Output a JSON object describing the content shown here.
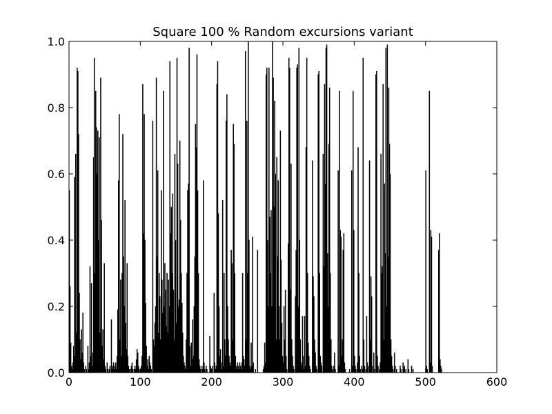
{
  "chart_data": {
    "type": "bar",
    "title": "Square 100 % Random excursions variant",
    "color": "#000000",
    "x": [
      0,
      1,
      2,
      3,
      4,
      5,
      6,
      7,
      8,
      9,
      10,
      11,
      12,
      13,
      14,
      15,
      16,
      17,
      18,
      19,
      20,
      21,
      22,
      23,
      24,
      25,
      26,
      27,
      28,
      29,
      30,
      31,
      32,
      33,
      34,
      35,
      36,
      37,
      38,
      39,
      40,
      41,
      42,
      43,
      44,
      45,
      46,
      47,
      48,
      49,
      50,
      51,
      52,
      53,
      54,
      55,
      56,
      57,
      58,
      59,
      60,
      61,
      62,
      63,
      64,
      65,
      66,
      67,
      68,
      69,
      70,
      71,
      72,
      73,
      74,
      75,
      76,
      77,
      78,
      79,
      80,
      81,
      82,
      83,
      84,
      85,
      86,
      87,
      88,
      89,
      90,
      91,
      92,
      93,
      94,
      95,
      96,
      97,
      98,
      99,
      100,
      101,
      102,
      103,
      104,
      105,
      106,
      107,
      108,
      109,
      110,
      111,
      112,
      113,
      114,
      115,
      116,
      117,
      118,
      119,
      120,
      121,
      122,
      123,
      124,
      125,
      126,
      127,
      128,
      129,
      130,
      131,
      132,
      133,
      134,
      135,
      136,
      137,
      138,
      139,
      140,
      141,
      142,
      143,
      144,
      145,
      146,
      147,
      148,
      149,
      150,
      151,
      152,
      153,
      154,
      155,
      156,
      157,
      158,
      159,
      160,
      161,
      162,
      163,
      164,
      165,
      166,
      167,
      168,
      169,
      170,
      171,
      172,
      173,
      174,
      175,
      176,
      177,
      178,
      179,
      180,
      181,
      182,
      183,
      184,
      185,
      186,
      187,
      188,
      189,
      190,
      191,
      192,
      193,
      194,
      195,
      196,
      197,
      198,
      199,
      200,
      201,
      202,
      203,
      204,
      205,
      206,
      207,
      208,
      209,
      210,
      211,
      212,
      213,
      214,
      215,
      216,
      217,
      218,
      219,
      220,
      221,
      222,
      223,
      224,
      225,
      226,
      227,
      228,
      229,
      230,
      231,
      232,
      233,
      234,
      235,
      236,
      237,
      238,
      239,
      240,
      241,
      242,
      243,
      244,
      245,
      246,
      247,
      248,
      249,
      250,
      251,
      252,
      253,
      254,
      255,
      256,
      257,
      258,
      259,
      260,
      261,
      262,
      263,
      264,
      265,
      266,
      267,
      268,
      269,
      270,
      271,
      272,
      273,
      274,
      275,
      276,
      277,
      278,
      279,
      280,
      281,
      282,
      283,
      284,
      285,
      286,
      287,
      288,
      289,
      290,
      291,
      292,
      293,
      294,
      295,
      296,
      297,
      298,
      299,
      300,
      301,
      302,
      303,
      304,
      305,
      306,
      307,
      308,
      309,
      310,
      311,
      312,
      313,
      314,
      315,
      316,
      317,
      318,
      319,
      320,
      321,
      322,
      323,
      324,
      325,
      326,
      327,
      328,
      329,
      330,
      331,
      332,
      333,
      334,
      335,
      336,
      337,
      338,
      339,
      340,
      341,
      342,
      343,
      344,
      345,
      346,
      347,
      348,
      349,
      350,
      351,
      352,
      353,
      354,
      355,
      356,
      357,
      358,
      359,
      360,
      361,
      362,
      363,
      364,
      365,
      366,
      367,
      368,
      369,
      370,
      371,
      372,
      373,
      374,
      375,
      376,
      377,
      378,
      379,
      380,
      381,
      382,
      383,
      384,
      385,
      386,
      387,
      388,
      389,
      390,
      391,
      392,
      393,
      394,
      395,
      396,
      397,
      398,
      399,
      400,
      401,
      402,
      403,
      404,
      405,
      406,
      407,
      408,
      409,
      410,
      411,
      412,
      413,
      414,
      415,
      416,
      417,
      418,
      419,
      420,
      421,
      422,
      423,
      424,
      425,
      426,
      427,
      428,
      429,
      430,
      431,
      432,
      433,
      434,
      435,
      436,
      437,
      438,
      439,
      440,
      441,
      442,
      443,
      444,
      445,
      446,
      447,
      448,
      449,
      450,
      451,
      452,
      453,
      454,
      455,
      456,
      457,
      458,
      459,
      460,
      461,
      462,
      463,
      464,
      465,
      466,
      467,
      468,
      469,
      470,
      471,
      472,
      473,
      474,
      475,
      476,
      477,
      478,
      479,
      480,
      481,
      482,
      483,
      484,
      485,
      486,
      487,
      488,
      489,
      490,
      491,
      492,
      493,
      494,
      495,
      496,
      497,
      498,
      499,
      500,
      501,
      502,
      503,
      504,
      505,
      506,
      507,
      508,
      509,
      510,
      511,
      512,
      513,
      514,
      515,
      516,
      517,
      518,
      519,
      520,
      521,
      522,
      523,
      524,
      525,
      526,
      527,
      528,
      529,
      530,
      531,
      532,
      533,
      534,
      535,
      536,
      537,
      538,
      539
    ],
    "values": [
      0.55,
      0.26,
      0.09,
      0.02,
      0.01,
      0.03,
      0.08,
      0.59,
      0.05,
      0.66,
      0.12,
      0.92,
      0.91,
      0.72,
      0.24,
      0.1,
      0.04,
      0.13,
      0.06,
      0.18,
      0.03,
      0.01,
      0.0,
      0.02,
      0.01,
      0.0,
      0.08,
      0.01,
      0.03,
      0.32,
      0.05,
      0.27,
      0.02,
      0.06,
      0.65,
      0.95,
      0.3,
      0.85,
      0.74,
      0.6,
      0.73,
      0.4,
      0.71,
      0.12,
      0.89,
      0.46,
      0.08,
      0.13,
      0.04,
      0.33,
      0.02,
      0.01,
      0.0,
      0.03,
      0.01,
      0.0,
      0.01,
      0.02,
      0.0,
      0.16,
      0.01,
      0.02,
      0.03,
      0.01,
      0.02,
      0.03,
      0.01,
      0.05,
      0.19,
      0.58,
      0.78,
      0.1,
      0.28,
      0.05,
      0.3,
      0.72,
      0.35,
      0.2,
      0.52,
      0.15,
      0.07,
      0.33,
      0.05,
      0.02,
      0.01,
      0.0,
      0.01,
      0.02,
      0.03,
      0.01,
      0.0,
      0.01,
      0.02,
      0.01,
      0.04,
      0.07,
      0.06,
      0.02,
      0.01,
      0.0,
      0.01,
      0.02,
      0.05,
      0.87,
      0.42,
      0.78,
      0.4,
      0.21,
      0.08,
      0.02,
      0.04,
      0.01,
      0.05,
      0.03,
      0.02,
      0.01,
      0.0,
      0.76,
      0.1,
      0.08,
      0.15,
      0.2,
      0.89,
      0.35,
      0.61,
      0.12,
      0.3,
      0.23,
      0.1,
      0.55,
      0.28,
      0.18,
      0.85,
      0.2,
      0.33,
      0.25,
      0.14,
      0.3,
      0.12,
      0.28,
      0.2,
      0.94,
      0.42,
      0.5,
      0.3,
      0.54,
      0.25,
      0.1,
      0.66,
      0.4,
      0.15,
      0.95,
      0.63,
      0.2,
      0.22,
      0.7,
      0.46,
      0.3,
      0.21,
      0.12,
      0.05,
      0.03,
      0.02,
      0.01,
      0.1,
      0.3,
      0.55,
      0.57,
      0.98,
      0.08,
      0.02,
      0.09,
      0.04,
      0.16,
      0.05,
      0.2,
      0.35,
      0.75,
      0.68,
      0.96,
      0.55,
      0.3,
      0.04,
      0.02,
      0.01,
      0.0,
      0.02,
      0.01,
      0.58,
      0.03,
      0.01,
      0.0,
      0.02,
      0.01,
      0.0,
      0.0,
      0.0,
      0.11,
      0.02,
      0.01,
      0.0,
      0.02,
      0.0,
      0.24,
      0.03,
      0.01,
      0.02,
      0.87,
      0.94,
      0.48,
      0.2,
      0.05,
      0.07,
      0.03,
      0.01,
      0.52,
      0.02,
      0.3,
      0.1,
      0.05,
      0.76,
      0.84,
      0.2,
      0.1,
      0.05,
      0.03,
      0.02,
      0.37,
      0.33,
      0.1,
      0.75,
      0.69,
      0.3,
      0.05,
      0.02,
      0.01,
      0.03,
      0.02,
      0.01,
      0.03,
      0.02,
      0.01,
      0.03,
      0.3,
      0.05,
      0.04,
      0.02,
      0.97,
      0.1,
      0.76,
      0.3,
      1.0,
      0.4,
      0.02,
      0.01,
      0.09,
      0.02,
      0.41,
      0.03,
      0.0,
      0.0,
      0.01,
      0.0,
      0.0,
      0.37,
      0.0,
      0.0,
      0.0,
      0.0,
      0.0,
      0.0,
      0.0,
      0.01,
      0.02,
      0.09,
      0.03,
      0.9,
      0.92,
      0.4,
      0.2,
      0.92,
      0.47,
      0.3,
      0.49,
      0.2,
      1.0,
      0.89,
      0.5,
      0.82,
      0.6,
      0.1,
      0.65,
      0.35,
      0.58,
      0.2,
      0.1,
      0.73,
      0.34,
      0.15,
      0.05,
      0.03,
      0.2,
      0.1,
      0.25,
      0.05,
      0.01,
      0.0,
      0.39,
      0.95,
      0.92,
      0.25,
      0.63,
      0.1,
      0.05,
      0.02,
      0.01,
      0.0,
      0.23,
      0.37,
      0.92,
      0.93,
      0.2,
      0.98,
      0.4,
      0.1,
      0.03,
      0.02,
      0.17,
      0.05,
      0.01,
      0.17,
      0.02,
      0.68,
      0.95,
      0.3,
      0.09,
      0.05,
      0.02,
      0.01,
      0.0,
      0.0,
      0.64,
      0.29,
      0.23,
      0.1,
      0.06,
      0.02,
      0.01,
      0.0,
      0.9,
      0.91,
      0.3,
      0.05,
      0.03,
      0.02,
      0.0,
      0.66,
      0.32,
      0.87,
      0.57,
      0.98,
      0.99,
      0.36,
      0.2,
      0.69,
      0.86,
      0.3,
      0.1,
      0.02,
      0.01,
      0.0,
      0.02,
      0.06,
      0.01,
      0.0,
      0.0,
      0.0,
      0.61,
      0.02,
      0.85,
      0.43,
      0.41,
      0.05,
      0.1,
      0.37,
      0.42,
      0.03,
      0.01,
      0.0,
      0.0,
      0.0,
      0.0,
      0.0,
      0.01,
      0.0,
      0.0,
      0.61,
      0.02,
      0.85,
      0.43,
      0.05,
      0.02,
      0.01,
      0.0,
      0.03,
      0.68,
      0.3,
      0.05,
      0.01,
      0.0,
      0.02,
      0.01,
      0.95,
      0.1,
      0.02,
      0.0,
      0.01,
      0.17,
      0.03,
      0.0,
      0.02,
      0.64,
      0.1,
      0.29,
      0.23,
      0.02,
      0.0,
      0.06,
      0.01,
      0.0,
      0.9,
      0.91,
      0.05,
      0.02,
      0.0,
      0.01,
      0.03,
      0.66,
      0.3,
      0.32,
      0.87,
      0.1,
      0.57,
      0.36,
      0.98,
      0.2,
      0.99,
      0.35,
      0.86,
      0.69,
      0.6,
      0.1,
      0.05,
      0.02,
      0.01,
      0.0,
      0.06,
      0.02,
      0.0,
      0.01,
      0.0,
      0.0,
      0.0,
      0.0,
      0.02,
      0.01,
      0.0,
      0.0,
      0.03,
      0.01,
      0.02,
      0.0,
      0.01,
      0.0,
      0.0,
      0.04,
      0.01,
      0.0,
      0.0,
      0.0,
      0.02,
      0.0,
      0.01,
      0.0,
      0.0,
      0.0,
      0.0,
      0.0,
      0.0,
      0.0,
      0.0,
      0.0,
      0.0,
      0.0,
      0.0,
      0.0,
      0.0,
      0.0,
      0.0,
      0.0,
      0.61,
      0.02,
      0.01,
      0.0,
      0.0,
      0.85,
      0.03,
      0.43,
      0.41,
      0.02,
      0.0,
      0.0,
      0.0,
      0.0,
      0.0,
      0.0,
      0.0,
      0.0,
      0.37,
      0.42,
      0.04,
      0.02,
      0.01,
      0.0,
      0.0,
      0.0,
      0.0,
      0.0,
      0.0,
      0.0,
      0.0,
      0.0,
      0.0,
      0.0,
      0.0,
      0.0,
      0.0,
      0.0,
      0.0,
      0.0
    ],
    "xlim": [
      0,
      600
    ],
    "xticks": [
      0,
      100,
      200,
      300,
      400,
      500,
      600
    ],
    "ylim": [
      0,
      1
    ],
    "yticks": [
      {
        "value": 0,
        "label": "0.0"
      },
      0.2,
      0.4,
      0.6,
      0.8,
      {
        "value": 1,
        "label": "1.0"
      }
    ]
  }
}
